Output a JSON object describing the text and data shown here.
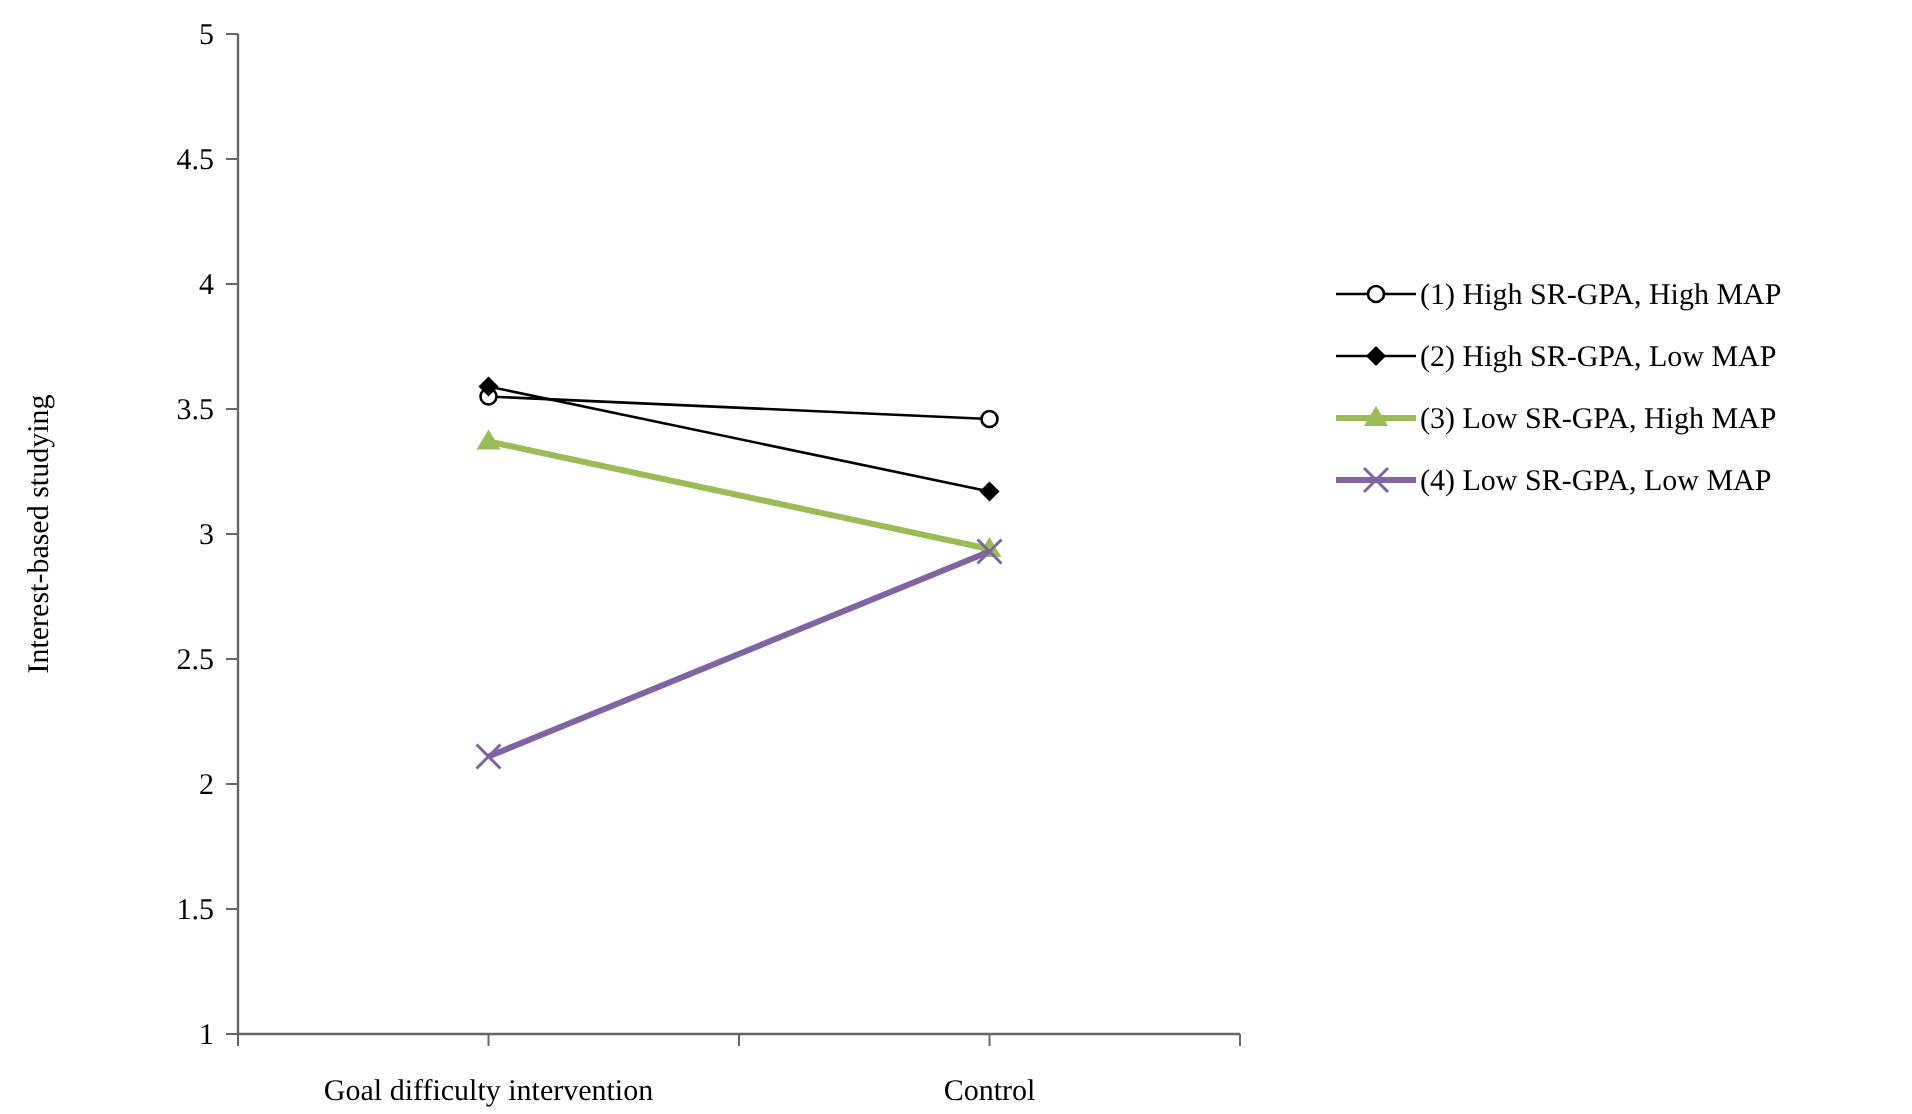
{
  "chart_data": {
    "type": "line",
    "ylabel": "Interest-based studying",
    "categories": [
      "Goal difficulty intervention",
      "Control"
    ],
    "ylim": [
      1,
      5
    ],
    "yticks": [
      1,
      1.5,
      2,
      2.5,
      3,
      3.5,
      4,
      4.5,
      5
    ],
    "grid": false,
    "legend": "right",
    "series": [
      {
        "name": "(1) High SR-GPA, High MAP",
        "color": "#000000",
        "marker": "circle",
        "values": [
          3.55,
          3.46
        ]
      },
      {
        "name": "(2) High SR-GPA, Low MAP",
        "color": "#000000",
        "marker": "diamond",
        "values": [
          3.59,
          3.17
        ]
      },
      {
        "name": "(3) Low SR-GPA, High MAP",
        "color": "#9bbb59",
        "marker": "triangle",
        "values": [
          3.37,
          2.94
        ]
      },
      {
        "name": "(4) Low SR-GPA, Low MAP",
        "color": "#8064a2",
        "marker": "cross",
        "values": [
          2.11,
          2.93
        ]
      }
    ]
  }
}
